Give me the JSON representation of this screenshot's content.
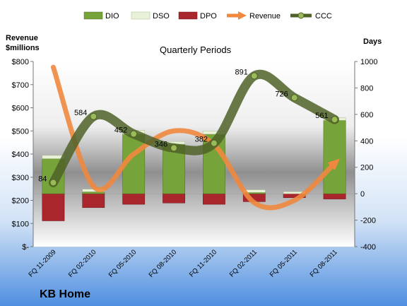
{
  "chart_data": {
    "type": "bar",
    "title": "Quarterly Periods",
    "company": "KB Home",
    "left_axis_label_line1": "Revenue",
    "left_axis_label_line2": "$millions",
    "right_axis_label": "Days",
    "categories": [
      "FQ 11-2009",
      "FQ 02-2010",
      "FQ 05-2010",
      "FQ 08-2010",
      "FQ 11-2010",
      "FQ 02-2011",
      "FQ 05-2011",
      "FQ 08-2011"
    ],
    "left_ylim": [
      0,
      800
    ],
    "right_ylim": [
      -400,
      1000
    ],
    "left_ticks": [
      "$-",
      "$100",
      "$200",
      "$300",
      "$400",
      "$500",
      "$600",
      "$700",
      "$800"
    ],
    "left_tick_values": [
      0,
      100,
      200,
      300,
      400,
      500,
      600,
      700,
      800
    ],
    "right_ticks": [
      "-400",
      "-200",
      "0",
      "200",
      "400",
      "600",
      "800",
      "1000"
    ],
    "right_tick_values": [
      -400,
      -200,
      0,
      200,
      400,
      600,
      800,
      1000
    ],
    "series": [
      {
        "name": "DIO",
        "axis": "right",
        "kind": "stacked-bar",
        "color": "#77a33b",
        "values": [
          265,
          15,
          450,
          375,
          450,
          10,
          0,
          555
        ]
      },
      {
        "name": "DSO",
        "axis": "right",
        "kind": "stacked-bar",
        "color": "#e8f2d8",
        "values": [
          25,
          20,
          30,
          20,
          25,
          20,
          15,
          20
        ]
      },
      {
        "name": "DPO",
        "axis": "right",
        "kind": "stacked-bar",
        "color": "#a8262c",
        "values": [
          -205,
          -105,
          -80,
          -70,
          -80,
          -60,
          -30,
          -40
        ]
      },
      {
        "name": "Revenue",
        "axis": "left",
        "kind": "line",
        "color": "#f0883e",
        "values": [
          775,
          260,
          400,
          500,
          440,
          190,
          200,
          360
        ]
      },
      {
        "name": "CCC",
        "axis": "right",
        "kind": "line",
        "color": "#4f6228",
        "values": [
          84,
          584,
          452,
          346,
          382,
          891,
          726,
          561
        ]
      }
    ],
    "ccc_labels": [
      "84",
      "584",
      "452",
      "346",
      "382",
      "891",
      "726",
      "561"
    ],
    "grid": false,
    "legend": "top"
  },
  "colors": {
    "background_top": "#ffffff",
    "background_bottom": "#4f8fe0",
    "plot_band": "#8c8c8c"
  }
}
